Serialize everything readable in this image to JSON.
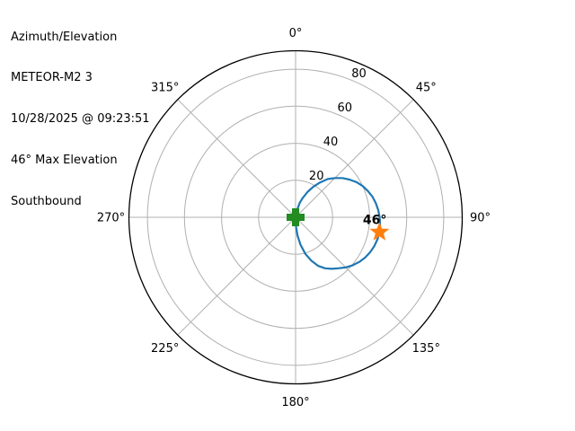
{
  "figure": {
    "background": "#ffffff"
  },
  "info_panel": {
    "title": "Azimuth/Elevation",
    "satellite": "METEOR-M2 3",
    "timestamp": "10/28/2025 @ 09:23:51",
    "max_elevation_text": "46° Max Elevation",
    "direction": "Southbound"
  },
  "chart_data": {
    "type": "line",
    "projection": "polar-azimuth-elevation",
    "title": "Azimuth/Elevation",
    "satellite": "METEOR-M2 3",
    "pass_timestamp": "10/28/2025 @ 09:23:51",
    "pass_direction": "Southbound",
    "max_elevation_deg": 46,
    "azimuth_ticks": [
      {
        "deg": 0,
        "label": "0°"
      },
      {
        "deg": 45,
        "label": "45°"
      },
      {
        "deg": 90,
        "label": "90°"
      },
      {
        "deg": 135,
        "label": "135°"
      },
      {
        "deg": 180,
        "label": "180°"
      },
      {
        "deg": 225,
        "label": "225°"
      },
      {
        "deg": 270,
        "label": "270°"
      },
      {
        "deg": 315,
        "label": "315°"
      }
    ],
    "radial_ticks": [
      20,
      40,
      60,
      80
    ],
    "radial_axis": {
      "min": 0,
      "max": 90,
      "label_angle_deg": 22.5,
      "grid": true
    },
    "colors": {
      "grid": "#b0b0b0",
      "outline": "#000000",
      "track": "#1f77b4",
      "endpoints_marker": "#228b22",
      "max_elevation_marker": "#ff7f0e",
      "text": "#000000"
    },
    "series": [
      {
        "name": "pass-track",
        "color": "#1f77b4",
        "line_width": 2.2,
        "points_az_el": [
          [
            8,
            0
          ],
          [
            12,
            4
          ],
          [
            16,
            8
          ],
          [
            20,
            11
          ],
          [
            25,
            15
          ],
          [
            30,
            19
          ],
          [
            35,
            23
          ],
          [
            40,
            27
          ],
          [
            45,
            30
          ],
          [
            50,
            33
          ],
          [
            55,
            35.5
          ],
          [
            60,
            38
          ],
          [
            65,
            40
          ],
          [
            70,
            41.5
          ],
          [
            75,
            43
          ],
          [
            80,
            44
          ],
          [
            85,
            44.8
          ],
          [
            90,
            45.4
          ],
          [
            95,
            45.8
          ],
          [
            100,
            46
          ],
          [
            105,
            45.8
          ],
          [
            110,
            45.3
          ],
          [
            115,
            44.5
          ],
          [
            120,
            43.4
          ],
          [
            125,
            42
          ],
          [
            130,
            40.3
          ],
          [
            135,
            38.3
          ],
          [
            140,
            36
          ],
          [
            145,
            34
          ],
          [
            150,
            31.8
          ],
          [
            155,
            29
          ],
          [
            160,
            25
          ],
          [
            165,
            20.5
          ],
          [
            170,
            15
          ],
          [
            174,
            10
          ],
          [
            177,
            5.5
          ],
          [
            180,
            0
          ]
        ]
      }
    ],
    "markers": [
      {
        "name": "track-endpoints-marker",
        "shape": "plus",
        "color": "#228b22",
        "azimuth": 0,
        "elevation": 0,
        "size": 20
      },
      {
        "name": "max-elevation-marker",
        "shape": "star",
        "color": "#ff7f0e",
        "azimuth": 100,
        "elevation": 46,
        "size": 23,
        "annotation": "46°"
      }
    ]
  }
}
